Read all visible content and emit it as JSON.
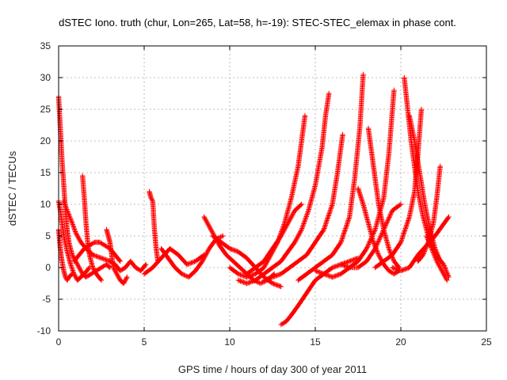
{
  "chart_data": {
    "type": "scatter",
    "title": "dSTEC Iono. truth (chur, Lon=265, Lat=58, h=-19): STEC-STEC_elemax in phase cont.",
    "xlabel": "GPS time / hours of day 300 of year 2011",
    "ylabel": "dSTEC  / TECUs",
    "xlim": [
      0,
      25
    ],
    "ylim": [
      -10,
      35
    ],
    "xticks": [
      0,
      5,
      10,
      15,
      20,
      25
    ],
    "yticks": [
      -10,
      -5,
      0,
      5,
      10,
      15,
      20,
      25,
      30,
      35
    ],
    "grid": true,
    "marker": "+",
    "color": "#ff0000",
    "series": [
      {
        "x": [
          0.0,
          0.1,
          0.2,
          0.3,
          0.4,
          0.5,
          0.6,
          0.8,
          1.0,
          1.2,
          1.4,
          1.6,
          1.9,
          2.2,
          2.5,
          2.8,
          3.0
        ],
        "y": [
          27,
          22,
          17,
          13,
          9,
          6,
          4,
          2,
          1,
          0,
          -1,
          -1.5,
          -1,
          -0.5,
          0,
          0.5,
          0
        ]
      },
      {
        "x": [
          0.0,
          0.1,
          0.2,
          0.3,
          0.5,
          0.7,
          0.9,
          1.1,
          1.3,
          1.5,
          1.8
        ],
        "y": [
          10.5,
          9,
          7,
          5,
          2.5,
          0.5,
          -1,
          -2,
          -1.5,
          -1,
          0
        ]
      },
      {
        "x": [
          0.0,
          0.1,
          0.2,
          0.3,
          0.4,
          0.5,
          0.6,
          0.8
        ],
        "y": [
          6,
          3,
          1,
          -0.5,
          -1.5,
          -2,
          -1.5,
          -1
        ]
      },
      {
        "x": [
          0.3,
          0.5,
          0.8,
          1.0,
          1.3,
          1.6,
          2.0,
          2.5,
          3.0
        ],
        "y": [
          10.5,
          9,
          7,
          5.5,
          4,
          3,
          2,
          1.5,
          1
        ]
      },
      {
        "x": [
          1.4,
          1.5,
          1.6,
          1.7,
          1.8,
          2.0,
          2.2,
          2.5
        ],
        "y": [
          14.5,
          11,
          7,
          4,
          2,
          0,
          -1,
          -2
        ]
      },
      {
        "x": [
          0.9,
          1.2,
          1.5,
          1.8,
          2.1,
          2.4,
          2.7,
          3.0,
          3.3,
          3.6
        ],
        "y": [
          1,
          2,
          3,
          3.5,
          4,
          4,
          3.5,
          3,
          2,
          1
        ]
      },
      {
        "x": [
          2.8,
          2.9,
          3.0,
          3.1,
          3.2,
          3.4,
          3.6,
          3.8,
          4.0
        ],
        "y": [
          6,
          5,
          4,
          2,
          0,
          -1,
          -2,
          -2.5,
          -1.5
        ]
      },
      {
        "x": [
          3.0,
          3.3,
          3.6,
          3.9,
          4.2,
          4.5,
          4.8,
          5.1
        ],
        "y": [
          1,
          0.5,
          -0.5,
          0,
          1,
          0,
          -0.5,
          0.5
        ]
      },
      {
        "x": [
          5.3,
          5.4,
          5.5,
          5.6,
          5.7,
          5.8
        ],
        "y": [
          12,
          11,
          10.5,
          6,
          3,
          1
        ]
      },
      {
        "x": [
          5.0,
          5.5,
          6.0,
          6.5,
          7.0,
          7.5,
          8.0,
          8.5
        ],
        "y": [
          -1,
          0,
          1.5,
          3,
          2,
          0.5,
          1,
          2
        ]
      },
      {
        "x": [
          6.0,
          6.4,
          6.8,
          7.2,
          7.6,
          8.0,
          8.4,
          8.8,
          9.2,
          9.6
        ],
        "y": [
          3,
          1.5,
          0,
          -1,
          -1.5,
          -0.5,
          1,
          3,
          4.5,
          5
        ]
      },
      {
        "x": [
          8.5,
          8.7,
          8.9,
          9.1,
          9.4,
          9.8,
          10.2,
          10.6,
          11.0,
          11.4,
          11.8,
          12.2,
          12.6
        ],
        "y": [
          8,
          7,
          6,
          5,
          3.5,
          2,
          1,
          0,
          -1,
          -2,
          -2.5,
          -2,
          -1
        ]
      },
      {
        "x": [
          9.0,
          9.5,
          10.0,
          10.5,
          11.0,
          11.5,
          12.0,
          12.5,
          13.0
        ],
        "y": [
          5,
          4,
          3,
          2.5,
          1.5,
          0,
          -1.5,
          -2.5,
          -3
        ]
      },
      {
        "x": [
          10.0,
          10.5,
          11.0,
          11.5,
          12.0,
          12.4,
          12.8,
          13.2,
          13.6,
          14.0,
          14.2,
          14.4
        ],
        "y": [
          0,
          -1,
          -1.5,
          -1,
          0,
          2,
          4,
          7,
          11,
          16,
          20,
          24
        ]
      },
      {
        "x": [
          10.5,
          11.0,
          11.5,
          12.0,
          12.5,
          13.0,
          13.4,
          13.8,
          14.2,
          14.6,
          15.0,
          15.4,
          15.6,
          15.8
        ],
        "y": [
          -2,
          -2.5,
          -2,
          -1,
          0,
          1,
          2.5,
          4,
          6,
          9,
          13,
          19,
          24,
          27.5
        ]
      },
      {
        "x": [
          11.0,
          11.5,
          12.0,
          12.5,
          13.0,
          13.4,
          13.8,
          14.2
        ],
        "y": [
          -1,
          0,
          1,
          3,
          5,
          7,
          9,
          10
        ]
      },
      {
        "x": [
          12.0,
          12.5,
          13.0,
          13.5,
          14.0,
          14.5,
          15.0,
          15.5,
          16.0,
          16.3,
          16.6
        ],
        "y": [
          -2,
          -1.5,
          -1,
          0,
          1,
          2,
          4,
          6,
          10,
          15,
          21
        ]
      },
      {
        "x": [
          13.0,
          13.3,
          13.6,
          14.0,
          14.5,
          15.0,
          15.5,
          16.0,
          16.5,
          17.0,
          17.5
        ],
        "y": [
          -9,
          -8.5,
          -7.5,
          -6,
          -4,
          -2,
          -1,
          0,
          0.5,
          1,
          1.5
        ]
      },
      {
        "x": [
          14.0,
          14.5,
          15.0,
          15.5,
          16.0,
          16.5,
          17.0,
          17.3,
          17.6,
          17.8
        ],
        "y": [
          -2,
          -1,
          0,
          1,
          2,
          4,
          8,
          14,
          22,
          30.5
        ]
      },
      {
        "x": [
          15.0,
          15.5,
          16.0,
          16.5,
          17.0,
          17.5,
          18.0,
          18.5,
          19.0,
          19.3,
          19.6
        ],
        "y": [
          -0.5,
          -1,
          -1.5,
          -1,
          0,
          1,
          3,
          6,
          11,
          18,
          28
        ]
      },
      {
        "x": [
          16.5,
          17.0,
          17.5,
          18.0,
          18.5,
          19.0,
          19.5,
          20.0
        ],
        "y": [
          0.5,
          0,
          0,
          1,
          3,
          6,
          9,
          10
        ]
      },
      {
        "x": [
          17.5,
          17.8,
          18.1,
          18.4,
          18.7,
          19.0,
          19.3,
          19.6,
          19.9
        ],
        "y": [
          12.5,
          10,
          7,
          4,
          2,
          0.5,
          -0.5,
          -1,
          -0.5
        ]
      },
      {
        "x": [
          18.1,
          18.3,
          18.5,
          18.7,
          19.0,
          19.3,
          19.6,
          19.9
        ],
        "y": [
          22,
          18,
          14,
          10,
          6,
          3,
          1,
          0
        ]
      },
      {
        "x": [
          18.5,
          19.0,
          19.5,
          20.0,
          20.5,
          20.8,
          21.0,
          21.2
        ],
        "y": [
          0,
          1,
          2,
          4,
          8,
          12,
          18,
          25
        ]
      },
      {
        "x": [
          20.2,
          20.4,
          20.6,
          20.8,
          21.0,
          21.3,
          21.6,
          21.9,
          22.2,
          22.5,
          22.8
        ],
        "y": [
          30,
          25,
          20,
          16,
          12,
          8,
          5,
          3,
          1.5,
          0.5,
          -1.5
        ]
      },
      {
        "x": [
          20.5,
          20.8,
          21.1,
          21.4,
          21.7,
          22.0,
          22.3
        ],
        "y": [
          24,
          20,
          15,
          10,
          6,
          3,
          1
        ]
      },
      {
        "x": [
          19.5,
          20.0,
          20.5,
          21.0,
          21.5,
          22.0,
          22.4,
          22.8
        ],
        "y": [
          0,
          -0.5,
          0,
          2,
          3.5,
          5,
          6.5,
          8
        ]
      },
      {
        "x": [
          21.0,
          21.3,
          21.6,
          21.9,
          22.1,
          22.3
        ],
        "y": [
          1,
          2,
          4,
          7,
          11,
          16
        ]
      },
      {
        "x": [
          21.5,
          21.8,
          22.1,
          22.4,
          22.7
        ],
        "y": [
          5,
          3,
          1,
          -0.5,
          -2
        ]
      }
    ]
  }
}
